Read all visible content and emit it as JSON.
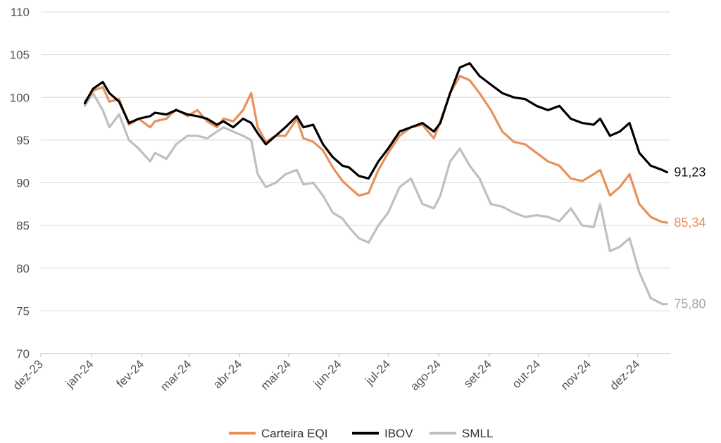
{
  "chart_data": {
    "type": "line",
    "title": "",
    "xlabel": "",
    "ylabel": "",
    "ylim": [
      70,
      110
    ],
    "yticks": [
      "70",
      "75",
      "80",
      "85",
      "90",
      "95",
      "100",
      "105",
      "110"
    ],
    "xticks": [
      "dez-23",
      "jan-24",
      "fev-24",
      "mar-24",
      "abr-24",
      "mai-24",
      "jun-24",
      "jul-24",
      "ago-24",
      "set-24",
      "out-24",
      "nov-24",
      "dez-24"
    ],
    "grid": "horizontal",
    "legend_position": "bottom",
    "series": [
      {
        "name": "Carteira EQI",
        "color": "#E8915A",
        "end_label": "85,34",
        "points": [
          [
            "2023-12-28",
            99.5
          ],
          [
            "2024-01-02",
            100.8
          ],
          [
            "2024-01-08",
            101.2
          ],
          [
            "2024-01-12",
            99.5
          ],
          [
            "2024-01-18",
            99.8
          ],
          [
            "2024-01-24",
            96.8
          ],
          [
            "2024-01-30",
            97.5
          ],
          [
            "2024-02-06",
            96.5
          ],
          [
            "2024-02-09",
            97.2
          ],
          [
            "2024-02-16",
            97.5
          ],
          [
            "2024-02-22",
            98.6
          ],
          [
            "2024-02-29",
            97.8
          ],
          [
            "2024-03-06",
            98.5
          ],
          [
            "2024-03-12",
            97.2
          ],
          [
            "2024-03-18",
            96.5
          ],
          [
            "2024-03-22",
            97.5
          ],
          [
            "2024-03-28",
            97.2
          ],
          [
            "2024-04-03",
            98.5
          ],
          [
            "2024-04-08",
            100.5
          ],
          [
            "2024-04-12",
            96.5
          ],
          [
            "2024-04-17",
            94.8
          ],
          [
            "2024-04-23",
            95.5
          ],
          [
            "2024-04-29",
            95.5
          ],
          [
            "2024-05-06",
            97.5
          ],
          [
            "2024-05-10",
            95.2
          ],
          [
            "2024-05-16",
            94.8
          ],
          [
            "2024-05-22",
            93.8
          ],
          [
            "2024-05-28",
            91.8
          ],
          [
            "2024-06-03",
            90.2
          ],
          [
            "2024-06-07",
            89.5
          ],
          [
            "2024-06-13",
            88.5
          ],
          [
            "2024-06-19",
            88.8
          ],
          [
            "2024-06-25",
            91.5
          ],
          [
            "2024-07-01",
            93.5
          ],
          [
            "2024-07-08",
            95.5
          ],
          [
            "2024-07-15",
            96.5
          ],
          [
            "2024-07-22",
            96.8
          ],
          [
            "2024-07-29",
            95.2
          ],
          [
            "2024-08-02",
            97.2
          ],
          [
            "2024-08-08",
            100.5
          ],
          [
            "2024-08-14",
            102.5
          ],
          [
            "2024-08-20",
            102.0
          ],
          [
            "2024-08-26",
            100.5
          ],
          [
            "2024-09-02",
            98.5
          ],
          [
            "2024-09-09",
            96.0
          ],
          [
            "2024-09-16",
            94.8
          ],
          [
            "2024-09-23",
            94.5
          ],
          [
            "2024-09-30",
            93.5
          ],
          [
            "2024-10-07",
            92.5
          ],
          [
            "2024-10-14",
            92.0
          ],
          [
            "2024-10-21",
            90.5
          ],
          [
            "2024-10-28",
            90.2
          ],
          [
            "2024-11-04",
            91.0
          ],
          [
            "2024-11-08",
            91.5
          ],
          [
            "2024-11-14",
            88.5
          ],
          [
            "2024-11-20",
            89.5
          ],
          [
            "2024-11-26",
            91.0
          ],
          [
            "2024-12-02",
            87.5
          ],
          [
            "2024-12-09",
            86.0
          ],
          [
            "2024-12-16",
            85.4
          ],
          [
            "2024-12-19",
            85.34
          ]
        ]
      },
      {
        "name": "IBOV",
        "color": "#000000",
        "end_label": "91,23",
        "points": [
          [
            "2023-12-28",
            99.3
          ],
          [
            "2024-01-02",
            101.0
          ],
          [
            "2024-01-08",
            101.8
          ],
          [
            "2024-01-12",
            100.5
          ],
          [
            "2024-01-18",
            99.5
          ],
          [
            "2024-01-24",
            97.0
          ],
          [
            "2024-01-30",
            97.5
          ],
          [
            "2024-02-06",
            97.8
          ],
          [
            "2024-02-09",
            98.2
          ],
          [
            "2024-02-16",
            98.0
          ],
          [
            "2024-02-22",
            98.5
          ],
          [
            "2024-02-29",
            98.0
          ],
          [
            "2024-03-06",
            97.8
          ],
          [
            "2024-03-12",
            97.5
          ],
          [
            "2024-03-18",
            96.8
          ],
          [
            "2024-03-22",
            97.2
          ],
          [
            "2024-03-28",
            96.5
          ],
          [
            "2024-04-03",
            97.5
          ],
          [
            "2024-04-08",
            97.0
          ],
          [
            "2024-04-12",
            95.8
          ],
          [
            "2024-04-17",
            94.5
          ],
          [
            "2024-04-23",
            95.5
          ],
          [
            "2024-04-29",
            96.5
          ],
          [
            "2024-05-06",
            97.8
          ],
          [
            "2024-05-10",
            96.5
          ],
          [
            "2024-05-16",
            96.8
          ],
          [
            "2024-05-22",
            94.5
          ],
          [
            "2024-05-28",
            93.0
          ],
          [
            "2024-06-03",
            92.0
          ],
          [
            "2024-06-07",
            91.8
          ],
          [
            "2024-06-13",
            90.8
          ],
          [
            "2024-06-19",
            90.5
          ],
          [
            "2024-06-25",
            92.5
          ],
          [
            "2024-07-01",
            94.0
          ],
          [
            "2024-07-08",
            96.0
          ],
          [
            "2024-07-15",
            96.5
          ],
          [
            "2024-07-22",
            97.0
          ],
          [
            "2024-07-29",
            96.0
          ],
          [
            "2024-08-02",
            97.0
          ],
          [
            "2024-08-08",
            100.5
          ],
          [
            "2024-08-14",
            103.5
          ],
          [
            "2024-08-20",
            104.0
          ],
          [
            "2024-08-26",
            102.5
          ],
          [
            "2024-09-02",
            101.5
          ],
          [
            "2024-09-09",
            100.5
          ],
          [
            "2024-09-16",
            100.0
          ],
          [
            "2024-09-23",
            99.8
          ],
          [
            "2024-09-30",
            99.0
          ],
          [
            "2024-10-07",
            98.5
          ],
          [
            "2024-10-14",
            99.0
          ],
          [
            "2024-10-21",
            97.5
          ],
          [
            "2024-10-28",
            97.0
          ],
          [
            "2024-11-04",
            96.8
          ],
          [
            "2024-11-08",
            97.5
          ],
          [
            "2024-11-14",
            95.5
          ],
          [
            "2024-11-20",
            96.0
          ],
          [
            "2024-11-26",
            97.0
          ],
          [
            "2024-12-02",
            93.5
          ],
          [
            "2024-12-09",
            92.0
          ],
          [
            "2024-12-16",
            91.5
          ],
          [
            "2024-12-19",
            91.23
          ]
        ]
      },
      {
        "name": "SMLL",
        "color": "#BFBFBF",
        "end_label": "75,80",
        "points": [
          [
            "2023-12-28",
            99.0
          ],
          [
            "2024-01-02",
            100.5
          ],
          [
            "2024-01-08",
            98.5
          ],
          [
            "2024-01-12",
            96.5
          ],
          [
            "2024-01-18",
            98.0
          ],
          [
            "2024-01-24",
            95.0
          ],
          [
            "2024-01-30",
            94.0
          ],
          [
            "2024-02-06",
            92.5
          ],
          [
            "2024-02-09",
            93.5
          ],
          [
            "2024-02-16",
            92.8
          ],
          [
            "2024-02-22",
            94.5
          ],
          [
            "2024-02-29",
            95.5
          ],
          [
            "2024-03-06",
            95.5
          ],
          [
            "2024-03-12",
            95.2
          ],
          [
            "2024-03-18",
            96.0
          ],
          [
            "2024-03-22",
            96.5
          ],
          [
            "2024-03-28",
            96.0
          ],
          [
            "2024-04-03",
            95.5
          ],
          [
            "2024-04-08",
            95.0
          ],
          [
            "2024-04-12",
            91.0
          ],
          [
            "2024-04-17",
            89.5
          ],
          [
            "2024-04-23",
            90.0
          ],
          [
            "2024-04-29",
            91.0
          ],
          [
            "2024-05-06",
            91.5
          ],
          [
            "2024-05-10",
            89.8
          ],
          [
            "2024-05-16",
            90.0
          ],
          [
            "2024-05-22",
            88.5
          ],
          [
            "2024-05-28",
            86.5
          ],
          [
            "2024-06-03",
            85.8
          ],
          [
            "2024-06-07",
            84.8
          ],
          [
            "2024-06-13",
            83.5
          ],
          [
            "2024-06-19",
            83.0
          ],
          [
            "2024-06-25",
            85.0
          ],
          [
            "2024-07-01",
            86.5
          ],
          [
            "2024-07-08",
            89.5
          ],
          [
            "2024-07-15",
            90.5
          ],
          [
            "2024-07-22",
            87.5
          ],
          [
            "2024-07-29",
            87.0
          ],
          [
            "2024-08-02",
            88.5
          ],
          [
            "2024-08-08",
            92.5
          ],
          [
            "2024-08-14",
            94.0
          ],
          [
            "2024-08-20",
            92.0
          ],
          [
            "2024-08-26",
            90.5
          ],
          [
            "2024-09-02",
            87.5
          ],
          [
            "2024-09-09",
            87.2
          ],
          [
            "2024-09-16",
            86.5
          ],
          [
            "2024-09-23",
            86.0
          ],
          [
            "2024-09-30",
            86.2
          ],
          [
            "2024-10-07",
            86.0
          ],
          [
            "2024-10-14",
            85.5
          ],
          [
            "2024-10-21",
            87.0
          ],
          [
            "2024-10-28",
            85.0
          ],
          [
            "2024-11-04",
            84.8
          ],
          [
            "2024-11-08",
            87.5
          ],
          [
            "2024-11-14",
            82.0
          ],
          [
            "2024-11-20",
            82.5
          ],
          [
            "2024-11-26",
            83.5
          ],
          [
            "2024-12-02",
            79.5
          ],
          [
            "2024-12-09",
            76.5
          ],
          [
            "2024-12-16",
            75.8
          ],
          [
            "2024-12-19",
            75.8
          ]
        ]
      }
    ]
  }
}
